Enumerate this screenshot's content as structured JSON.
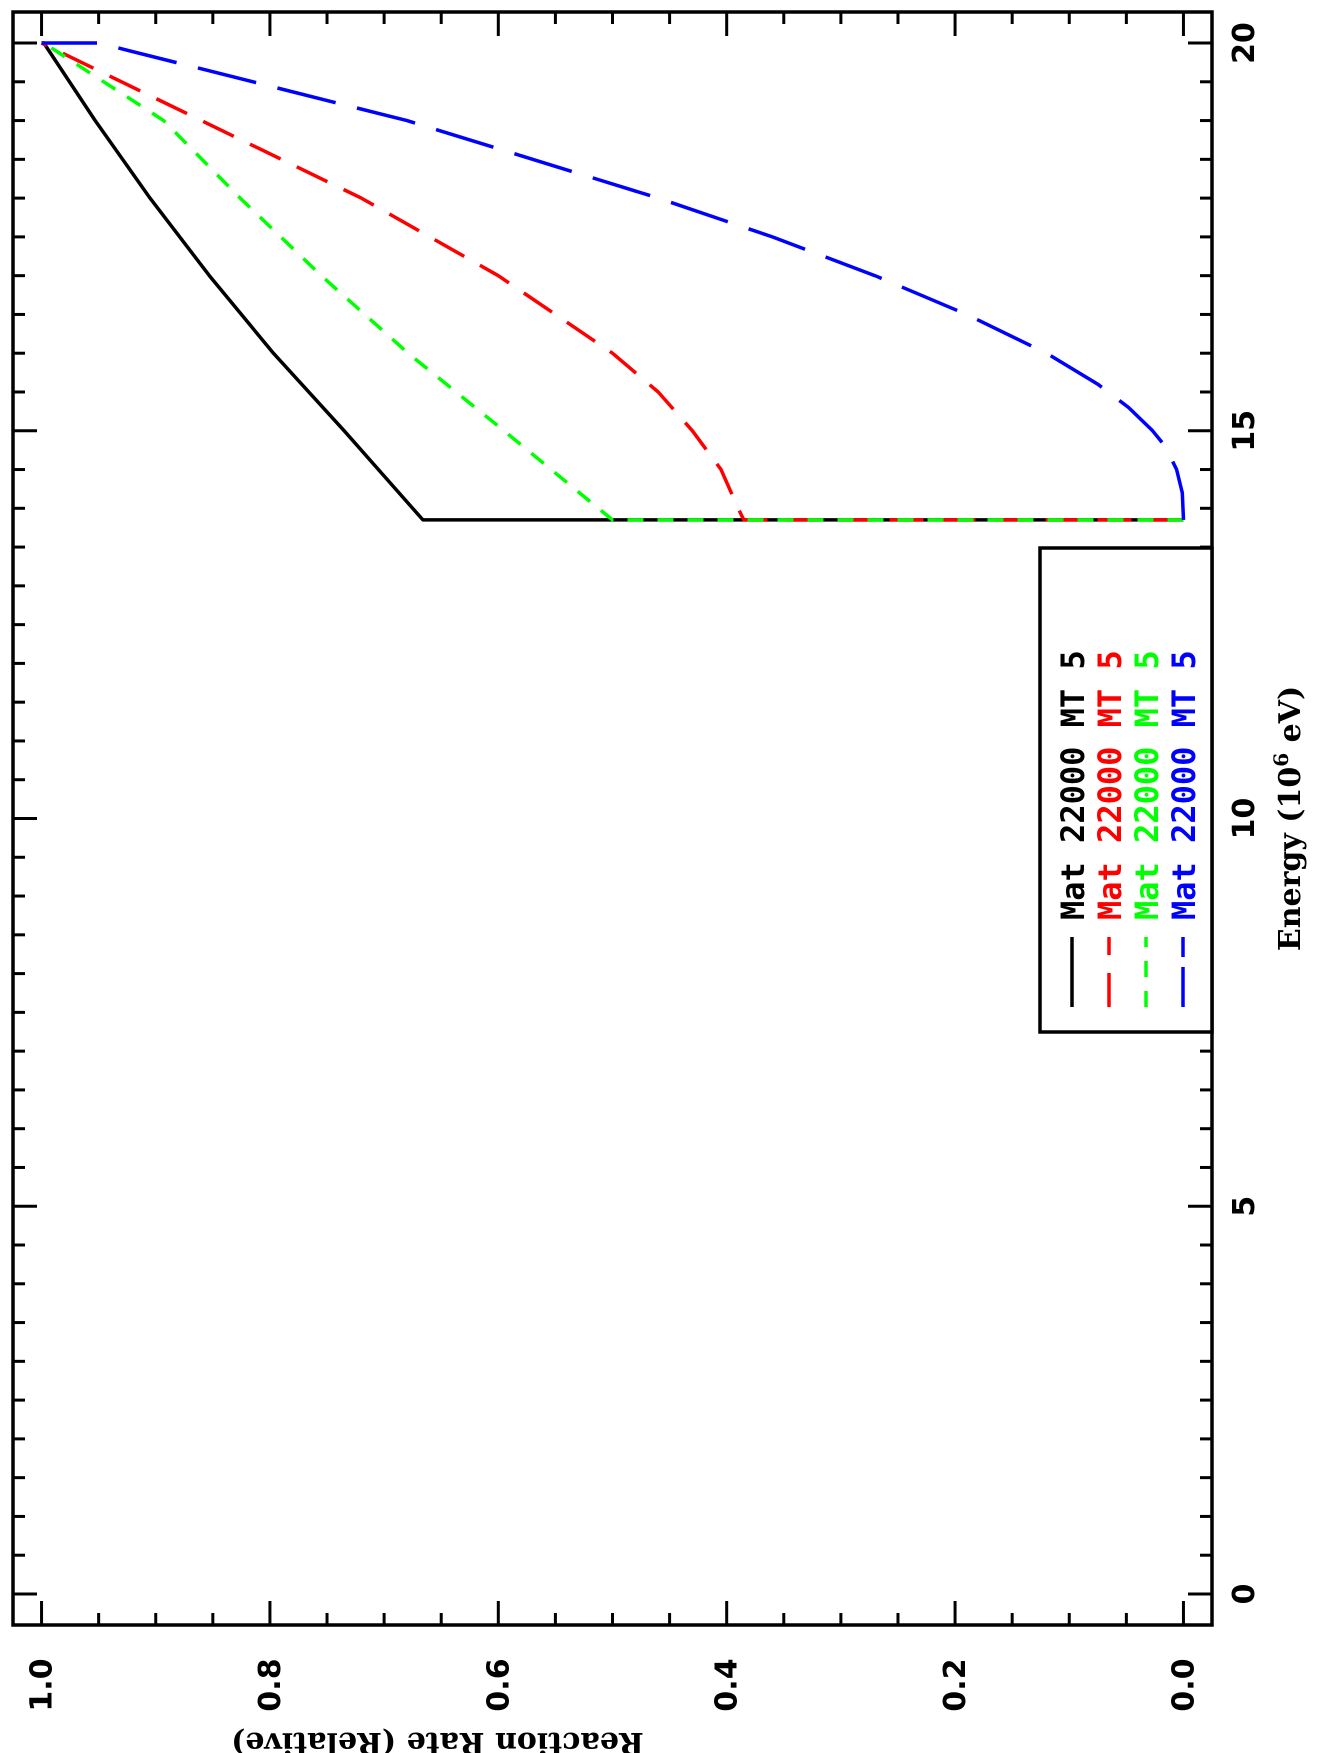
{
  "chart_data": {
    "type": "line",
    "xlabel": "Energy (10",
    "xlabel_sup": "6",
    "xlabel_tail": " eV)",
    "ylabel": "Reaction Rate (Relative)",
    "xlim": [
      -0.4,
      20.4
    ],
    "ylim": [
      -0.025,
      1.025
    ],
    "x_ticks": [
      "0",
      "5",
      "10",
      "15",
      "20"
    ],
    "y_ticks": [
      "0.0",
      "0.2",
      "0.4",
      "0.6",
      "0.8",
      "1.0"
    ],
    "x_tick_values": [
      0,
      5,
      10,
      15,
      20
    ],
    "y_tick_values": [
      0,
      0.2,
      0.4,
      0.6,
      0.8,
      1.0
    ],
    "legend_position": "bottom-right",
    "series": [
      {
        "name_parts": [
          "Mat",
          "22000",
          "MT",
          "5"
        ],
        "color": "#000000",
        "dash": "solid",
        "x": [
          13.85,
          13.85,
          13.85,
          15.0,
          16.0,
          17.0,
          18.0,
          19.0,
          20.0,
          20.0
        ],
        "y": [
          0.0,
          0.5,
          0.666,
          0.735,
          0.797,
          0.853,
          0.905,
          0.953,
          0.998,
          1.0
        ]
      },
      {
        "name_parts": [
          "Mat",
          "22000",
          "MT",
          "5"
        ],
        "color": "#ff0000",
        "dash": "long-dash",
        "x": [
          13.85,
          13.85,
          14.0,
          14.5,
          15.0,
          15.5,
          16.0,
          16.5,
          17.0,
          18.0,
          19.0,
          20.0
        ],
        "y": [
          0.0,
          0.385,
          0.39,
          0.405,
          0.43,
          0.46,
          0.5,
          0.55,
          0.6,
          0.72,
          0.86,
          1.0
        ]
      },
      {
        "name_parts": [
          "Mat",
          "22000",
          "MT",
          "5"
        ],
        "color": "#00ff00",
        "dash": "short-dash",
        "x": [
          13.85,
          13.85,
          13.85,
          15.0,
          16.0,
          17.0,
          18.0,
          19.0,
          20.0
        ],
        "y": [
          0.0,
          0.3,
          0.5,
          0.595,
          0.679,
          0.755,
          0.826,
          0.893,
          0.998
        ]
      },
      {
        "name_parts": [
          "Mat",
          "22000",
          "MT",
          "5"
        ],
        "color": "#0000ff",
        "dash": "very-long-dash",
        "x": [
          13.85,
          14.2,
          14.5,
          14.8,
          15.0,
          15.3,
          15.6,
          16.0,
          16.5,
          17.0,
          17.5,
          18.0,
          18.5,
          19.0,
          20.0,
          20.0
        ],
        "y": [
          0.0,
          0.001,
          0.006,
          0.016,
          0.027,
          0.048,
          0.075,
          0.12,
          0.19,
          0.27,
          0.36,
          0.46,
          0.57,
          0.68,
          0.95,
          1.0
        ]
      }
    ]
  }
}
